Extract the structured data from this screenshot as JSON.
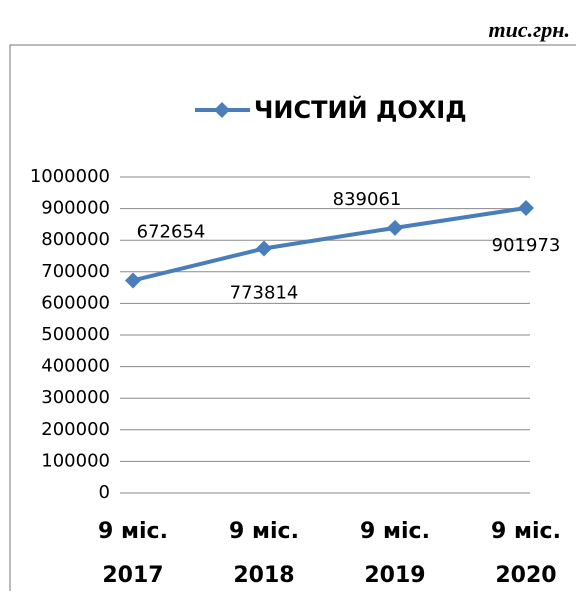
{
  "unit_label": "тис.грн.",
  "chart_data": {
    "type": "line",
    "categories": [
      "9 міс. 2017",
      "9 міс. 2018",
      "9 міс. 2019",
      "9 міс. 2020"
    ],
    "series": [
      {
        "name": "ЧИСТИЙ ДОХІД",
        "color": "#4a7ebb",
        "values": [
          672654,
          773814,
          839061,
          901973
        ]
      }
    ],
    "ylim": [
      0,
      1000000
    ],
    "yticks": [
      0,
      100000,
      200000,
      300000,
      400000,
      500000,
      600000,
      700000,
      800000,
      900000,
      1000000
    ],
    "grid": true,
    "legend": "top"
  }
}
